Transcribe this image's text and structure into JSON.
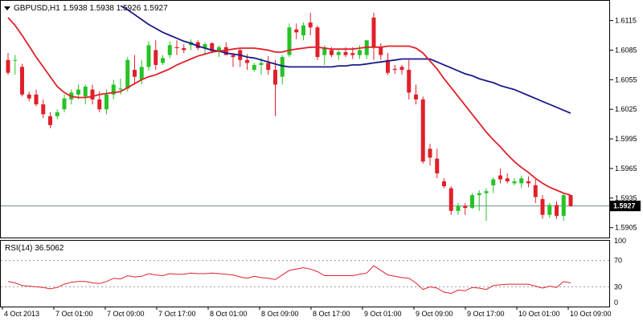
{
  "window": {
    "symbol_label": "GBPUSD,H1",
    "ohlc_readout": "1.5938 1.5938 1.5926 1.5927",
    "current_price_label": "1.5927"
  },
  "indicator": {
    "label": "RSI(14) 36.5062",
    "levels": [
      70,
      30
    ],
    "axis_labels": [
      "100",
      "70",
      "30",
      "0"
    ]
  },
  "colors": {
    "bull": "#27c227",
    "bear": "#e0202a",
    "ma_fast": "#e0202a",
    "ma_slow": "#1a1a8c",
    "rsi": "#e0202a",
    "price_line": "#6b8f8f",
    "level_line": "#9a9a9a",
    "frame": "#000000"
  },
  "chart_data": {
    "type": "candlestick",
    "ylim": [
      1.5895,
      1.6135
    ],
    "y_ticks": [
      "1.6115",
      "1.6085",
      "1.6055",
      "1.6025",
      "1.5995",
      "1.5965",
      "1.5935",
      "1.5905"
    ],
    "x_ticks": [
      "4 Oct 2013",
      "7 Oct 01:00",
      "7 Oct 09:00",
      "7 Oct 17:00",
      "8 Oct 01:00",
      "8 Oct 09:00",
      "8 Oct 17:00",
      "9 Oct 01:00",
      "9 Oct 09:00",
      "9 Oct 17:00",
      "10 Oct 01:00",
      "10 Oct 09:00"
    ],
    "candles": [
      [
        1.6075,
        1.6082,
        1.606,
        1.6062
      ],
      [
        1.6075,
        1.608,
        1.606,
        1.6075
      ],
      [
        1.6068,
        1.6071,
        1.6038,
        1.604
      ],
      [
        1.604,
        1.6043,
        1.6033,
        1.6036
      ],
      [
        1.604,
        1.6045,
        1.6028,
        1.603
      ],
      [
        1.603,
        1.6035,
        1.6016,
        1.602
      ],
      [
        1.6018,
        1.6022,
        1.6006,
        1.6009
      ],
      [
        1.6018,
        1.6025,
        1.6015,
        1.6022
      ],
      [
        1.6025,
        1.604,
        1.6022,
        1.6036
      ],
      [
        1.6035,
        1.6045,
        1.603,
        1.6042
      ],
      [
        1.604,
        1.605,
        1.6035,
        1.6045
      ],
      [
        1.6038,
        1.605,
        1.603,
        1.6048
      ],
      [
        1.6045,
        1.605,
        1.603,
        1.6035
      ],
      [
        1.6035,
        1.6043,
        1.6022,
        1.6025
      ],
      [
        1.6025,
        1.6045,
        1.602,
        1.604
      ],
      [
        1.604,
        1.6055,
        1.6035,
        1.605
      ],
      [
        1.6045,
        1.6056,
        1.604,
        1.6046
      ],
      [
        1.6046,
        1.6078,
        1.6043,
        1.6075
      ],
      [
        1.6065,
        1.608,
        1.605,
        1.6058
      ],
      [
        1.6055,
        1.6075,
        1.605,
        1.6068
      ],
      [
        1.6068,
        1.6094,
        1.6064,
        1.609
      ],
      [
        1.6085,
        1.6095,
        1.6065,
        1.607
      ],
      [
        1.6072,
        1.608,
        1.607,
        1.6077
      ],
      [
        1.608,
        1.6094,
        1.6077,
        1.609
      ],
      [
        1.6088,
        1.6095,
        1.608,
        1.6087
      ],
      [
        1.6087,
        1.6091,
        1.6082,
        1.6085
      ],
      [
        1.609,
        1.6096,
        1.6085,
        1.6093
      ],
      [
        1.6093,
        1.6095,
        1.6085,
        1.6087
      ],
      [
        1.6087,
        1.6093,
        1.608,
        1.6091
      ],
      [
        1.6092,
        1.6093,
        1.6082,
        1.6084
      ],
      [
        1.6084,
        1.609,
        1.6078,
        1.6088
      ],
      [
        1.6088,
        1.6093,
        1.6082,
        1.608
      ],
      [
        1.608,
        1.6082,
        1.6068,
        1.6078
      ],
      [
        1.6085,
        1.6087,
        1.6068,
        1.6075
      ],
      [
        1.6075,
        1.6081,
        1.6065,
        1.6072
      ],
      [
        1.6065,
        1.6072,
        1.6063,
        1.607
      ],
      [
        1.607,
        1.6077,
        1.606,
        1.6072
      ],
      [
        1.6072,
        1.6079,
        1.606,
        1.6065
      ],
      [
        1.6065,
        1.6075,
        1.6018,
        1.605
      ],
      [
        1.6058,
        1.608,
        1.605,
        1.6078
      ],
      [
        1.608,
        1.6112,
        1.6078,
        1.6108
      ],
      [
        1.6106,
        1.6112,
        1.6096,
        1.6103
      ],
      [
        1.61,
        1.6113,
        1.6095,
        1.611
      ],
      [
        1.6113,
        1.6123,
        1.61,
        1.6108
      ],
      [
        1.6108,
        1.611,
        1.6075,
        1.6078
      ],
      [
        1.608,
        1.609,
        1.607,
        1.6088
      ],
      [
        1.6085,
        1.6088,
        1.6078,
        1.608
      ],
      [
        1.608,
        1.6085,
        1.6075,
        1.6083
      ],
      [
        1.6083,
        1.6088,
        1.6078,
        1.608
      ],
      [
        1.6082,
        1.6088,
        1.6076,
        1.608
      ],
      [
        1.608,
        1.609,
        1.6076,
        1.6085
      ],
      [
        1.608,
        1.6093,
        1.6076,
        1.6095
      ],
      [
        1.6118,
        1.6123,
        1.6075,
        1.6088
      ],
      [
        1.6088,
        1.6092,
        1.6075,
        1.608
      ],
      [
        1.6075,
        1.6082,
        1.606,
        1.6062
      ],
      [
        1.6066,
        1.607,
        1.6061,
        1.6065
      ],
      [
        1.6068,
        1.607,
        1.606,
        1.6065
      ],
      [
        1.6065,
        1.6075,
        1.6035,
        1.6042
      ],
      [
        1.604,
        1.605,
        1.603,
        1.6035
      ],
      [
        1.6035,
        1.6038,
        1.597,
        1.5972
      ],
      [
        1.5985,
        1.599,
        1.5968,
        1.5976
      ],
      [
        1.5975,
        1.5985,
        1.5955,
        1.596
      ],
      [
        1.5952,
        1.5955,
        1.5945,
        1.5947
      ],
      [
        1.5945,
        1.5947,
        1.5918,
        1.5922
      ],
      [
        1.5922,
        1.593,
        1.5918,
        1.5927
      ],
      [
        1.5927,
        1.593,
        1.5918,
        1.5925
      ],
      [
        1.5925,
        1.594,
        1.5924,
        1.5938
      ],
      [
        1.5938,
        1.5943,
        1.5922,
        1.594
      ],
      [
        1.594,
        1.5945,
        1.5912,
        1.5942
      ],
      [
        1.5948,
        1.5956,
        1.594,
        1.5954
      ],
      [
        1.5958,
        1.5965,
        1.595,
        1.5954
      ],
      [
        1.5955,
        1.596,
        1.595,
        1.5952
      ],
      [
        1.595,
        1.5955,
        1.5948,
        1.5952
      ],
      [
        1.595,
        1.5958,
        1.5945,
        1.5955
      ],
      [
        1.5952,
        1.5957,
        1.5946,
        1.595
      ],
      [
        1.5948,
        1.5954,
        1.593,
        1.5936
      ],
      [
        1.5934,
        1.5938,
        1.5914,
        1.5918
      ],
      [
        1.5918,
        1.593,
        1.5915,
        1.5928
      ],
      [
        1.5928,
        1.5932,
        1.5914,
        1.5917
      ],
      [
        1.5917,
        1.594,
        1.5912,
        1.5938
      ],
      [
        1.5938,
        1.5938,
        1.5926,
        1.5927
      ]
    ],
    "ma_fast": [
      1.6118,
      1.611,
      1.61,
      1.6089,
      1.6078,
      1.6068,
      1.6058,
      1.6048,
      1.6042,
      1.6038,
      1.6037,
      1.6037,
      1.6038,
      1.604,
      1.6041,
      1.6042,
      1.6043,
      1.6047,
      1.6051,
      1.6055,
      1.6058,
      1.606,
      1.6063,
      1.6066,
      1.607,
      1.6073,
      1.6076,
      1.6079,
      1.6081,
      1.6083,
      1.6084,
      1.6085,
      1.6086,
      1.6087,
      1.6087,
      1.6087,
      1.6086,
      1.6085,
      1.6083,
      1.6083,
      1.6085,
      1.6086,
      1.6087,
      1.6088,
      1.6088,
      1.6087,
      1.6086,
      1.6086,
      1.6086,
      1.6086,
      1.6087,
      1.6088,
      1.6088,
      1.6088,
      1.6089,
      1.6089,
      1.6089,
      1.6089,
      1.6087,
      1.6082,
      1.6074,
      1.6066,
      1.6056,
      1.6047,
      1.6038,
      1.6029,
      1.602,
      1.6011,
      1.6002,
      1.5994,
      1.5987,
      1.5979,
      1.5972,
      1.5966,
      1.5961,
      1.5955,
      1.595,
      1.5946,
      1.5943,
      1.594,
      1.5938
    ],
    "ma_slow": [
      null,
      null,
      null,
      null,
      null,
      null,
      null,
      null,
      null,
      null,
      null,
      null,
      null,
      null,
      null,
      null,
      1.613,
      1.6126,
      1.6121,
      1.6116,
      1.6111,
      1.6107,
      1.6103,
      1.61,
      1.6097,
      1.6094,
      1.6092,
      1.6089,
      1.6087,
      1.6085,
      1.6084,
      1.6082,
      1.6081,
      1.608,
      1.6078,
      1.6077,
      1.6075,
      1.6073,
      1.6071,
      1.6069,
      1.6068,
      1.6068,
      1.6068,
      1.6068,
      1.6068,
      1.6068,
      1.6068,
      1.6069,
      1.6069,
      1.607,
      1.607,
      1.6071,
      1.6072,
      1.6073,
      1.6074,
      1.6075,
      1.6076,
      1.6076,
      1.6076,
      1.6076,
      1.6076,
      1.6073,
      1.607,
      1.6067,
      1.6064,
      1.6061,
      1.6059,
      1.6056,
      1.6054,
      1.6052,
      1.6049,
      1.6047,
      1.6045,
      1.6042,
      1.6039,
      1.6036,
      1.6033,
      1.603,
      1.6027,
      1.6024,
      1.6021
    ],
    "rsi": [
      38,
      36,
      32,
      31,
      30,
      29,
      27,
      29,
      34,
      37,
      38,
      38,
      36,
      35,
      38,
      43,
      42,
      47,
      45,
      46,
      50,
      48,
      47,
      50,
      49,
      49,
      51,
      50,
      50,
      51,
      50,
      49,
      48,
      45,
      43,
      46,
      44,
      43,
      41,
      48,
      55,
      57,
      59,
      57,
      53,
      47,
      47,
      47,
      47,
      47,
      49,
      51,
      62,
      55,
      48,
      46,
      44,
      43,
      36,
      26,
      30,
      28,
      22,
      20,
      25,
      24,
      29,
      28,
      26,
      32,
      33,
      34,
      34,
      34,
      34,
      31,
      28,
      31,
      29,
      38,
      36
    ]
  }
}
